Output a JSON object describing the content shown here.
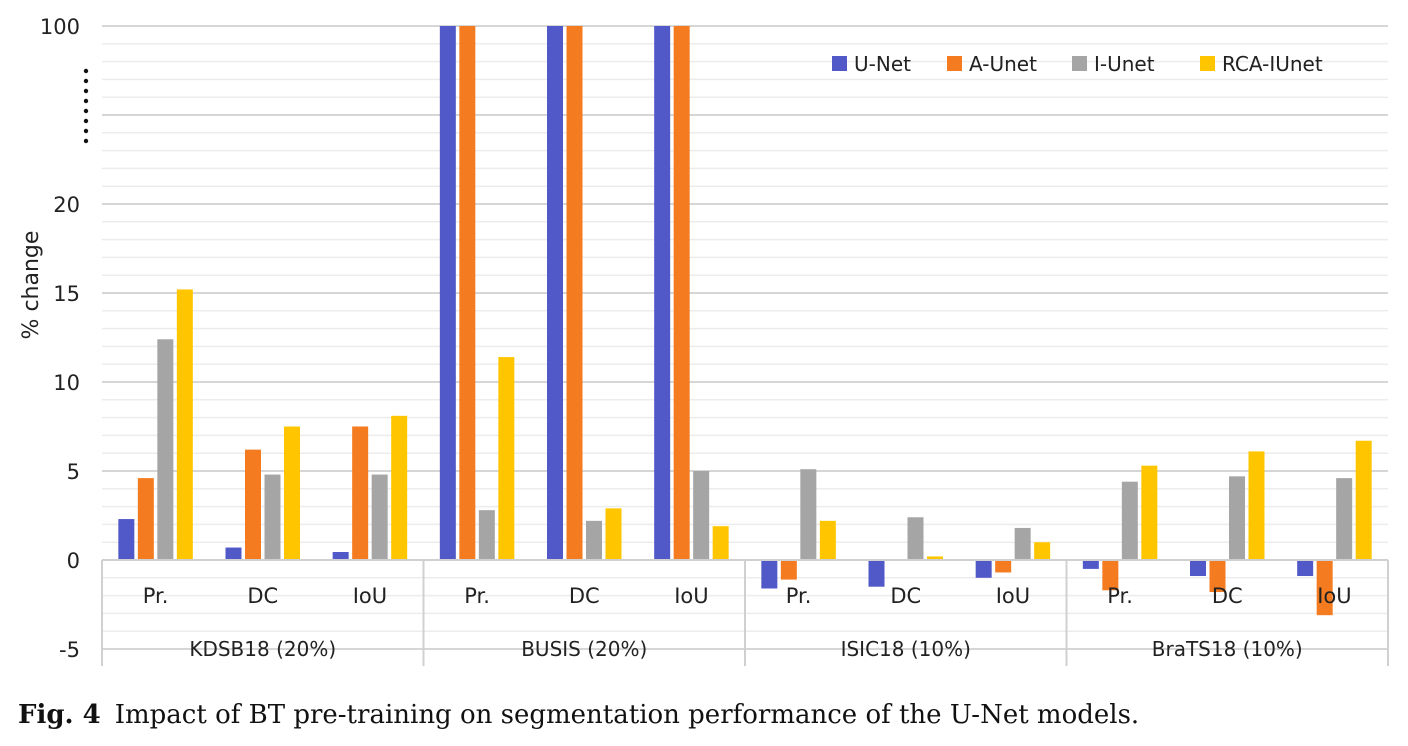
{
  "chart_data": {
    "type": "bar",
    "ylabel": "% change",
    "y_ticks": [
      "-5",
      "0",
      "5",
      "10",
      "15",
      "20",
      "100"
    ],
    "y_axis_break": "between 20 and 100 (shown as dotted line)",
    "ylim": [
      -5,
      100
    ],
    "grid": true,
    "legend_position": "top-right",
    "groups": [
      "KDSB18 (20%)",
      "BUSIS (20%)",
      "ISIC18 (10%)",
      "BraTS18 (10%)"
    ],
    "categories": [
      "Pr.",
      "DC",
      "IoU"
    ],
    "series": [
      {
        "name": "U-Net",
        "color": "#5159C8",
        "values": [
          [
            2.3,
            0.7,
            0.45
          ],
          [
            100,
            100,
            100
          ],
          [
            -1.6,
            -1.5,
            -1.0
          ],
          [
            -0.5,
            -0.9,
            -0.9
          ]
        ]
      },
      {
        "name": "A-Unet",
        "color": "#F47B20",
        "values": [
          [
            4.6,
            6.2,
            7.5
          ],
          [
            100,
            100,
            100
          ],
          [
            -1.1,
            0,
            -0.7
          ],
          [
            -1.7,
            -1.8,
            -3.1
          ]
        ]
      },
      {
        "name": "I-Unet",
        "color": "#A5A5A5",
        "values": [
          [
            12.4,
            4.8,
            4.8
          ],
          [
            2.8,
            2.2,
            5.0
          ],
          [
            5.1,
            2.4,
            1.8
          ],
          [
            4.4,
            4.7,
            4.6
          ]
        ]
      },
      {
        "name": "RCA-IUnet",
        "color": "#FFC600",
        "values": [
          [
            15.2,
            7.5,
            8.1
          ],
          [
            11.4,
            2.9,
            1.9
          ],
          [
            2.2,
            0.2,
            1.0
          ],
          [
            5.3,
            6.1,
            6.7
          ]
        ]
      }
    ]
  },
  "caption": {
    "label": "Fig. 4",
    "text": "Impact of BT pre-training on segmentation performance of the U-Net models."
  }
}
